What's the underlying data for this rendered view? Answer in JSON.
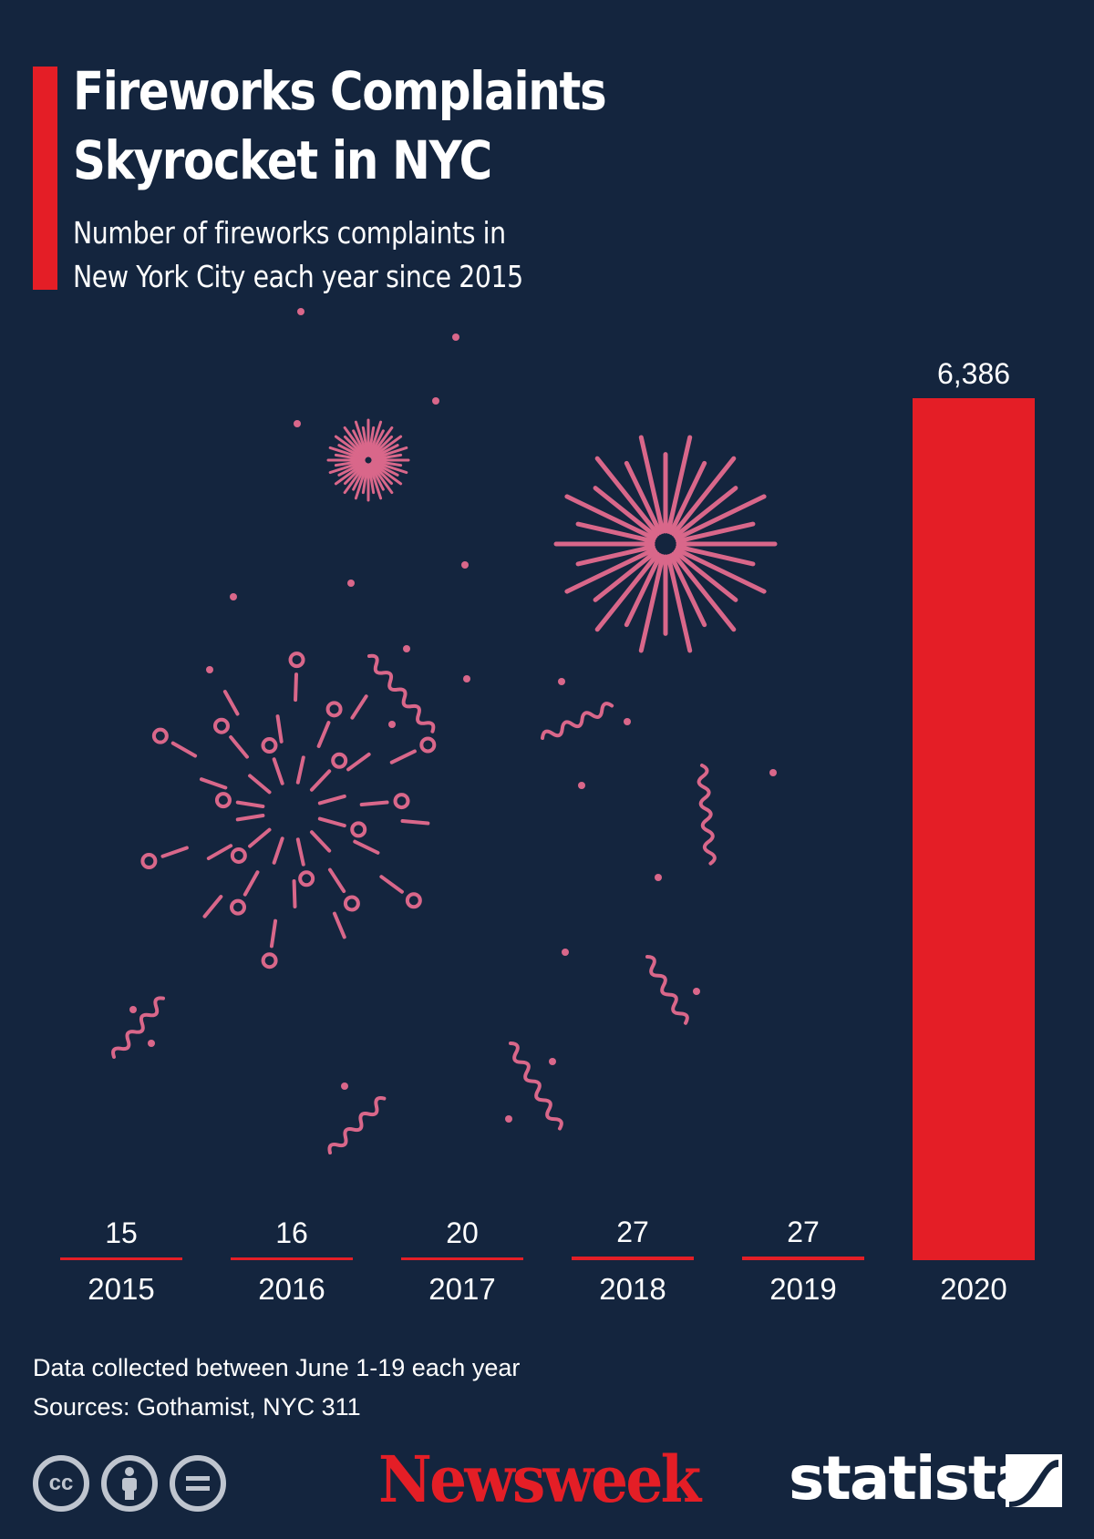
{
  "header": {
    "title_line1": "Fireworks Complaints",
    "title_line2": "Skyrocket in NYC",
    "subtitle_line1": "Number of fireworks complaints in",
    "subtitle_line2": "New York City each year since 2015"
  },
  "chart_data": {
    "type": "bar",
    "categories": [
      "2015",
      "2016",
      "2017",
      "2018",
      "2019",
      "2020"
    ],
    "values": [
      15,
      16,
      20,
      27,
      27,
      6386
    ],
    "value_labels": [
      "15",
      "16",
      "20",
      "27",
      "27",
      "6,386"
    ],
    "ylim": [
      0,
      6386
    ],
    "grid": false,
    "bar_color": "#e41e26",
    "background": "#14253e"
  },
  "footer": {
    "note": "Data collected between June 1-19 each year",
    "sources": "Sources: Gothamist, NYC 311",
    "cc_icons": [
      "cc-icon",
      "attribution-icon",
      "no-derivatives-icon"
    ],
    "newsweek_logo": "Newsweek",
    "statista_logo": "statista"
  },
  "colors": {
    "accent": "#e41e26",
    "decoration": "#d9678a"
  }
}
